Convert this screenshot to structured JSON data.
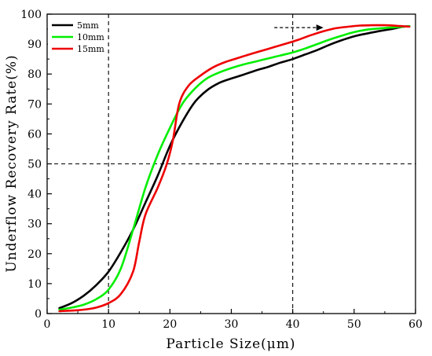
{
  "chart_data": {
    "type": "line",
    "xlabel": "Particle Size(μm)",
    "ylabel": "Underflow Recovery Rate(%)",
    "xlim": [
      0,
      60
    ],
    "ylim": [
      0,
      100
    ],
    "xticks": [
      "0",
      "10",
      "20",
      "30",
      "40",
      "50",
      "60"
    ],
    "yticks": [
      "0",
      "10",
      "20",
      "30",
      "40",
      "50",
      "60",
      "70",
      "80",
      "90",
      "100"
    ],
    "grid": false,
    "legend_position": "top-left",
    "reference_lines": {
      "vertical_x": [
        10,
        40
      ],
      "horizontal_y": [
        50
      ]
    },
    "annotation": {
      "type": "arrow",
      "direction": "right",
      "from": [
        37,
        95.5
      ],
      "to": [
        45,
        95.5
      ]
    },
    "series": [
      {
        "name": "5mm",
        "color": "#000000",
        "points": [
          [
            2,
            1.8
          ],
          [
            4,
            3.5
          ],
          [
            6,
            6
          ],
          [
            8,
            9.5
          ],
          [
            10,
            14
          ],
          [
            12,
            20.5
          ],
          [
            14,
            28
          ],
          [
            16,
            37
          ],
          [
            18,
            46
          ],
          [
            20,
            56
          ],
          [
            22,
            64
          ],
          [
            24,
            70.5
          ],
          [
            26,
            74.5
          ],
          [
            28,
            77
          ],
          [
            30,
            78.5
          ],
          [
            32,
            79.8
          ],
          [
            34,
            81.2
          ],
          [
            36,
            82.4
          ],
          [
            38,
            83.8
          ],
          [
            40,
            85
          ],
          [
            42,
            86.5
          ],
          [
            44,
            88
          ],
          [
            46,
            89.8
          ],
          [
            48,
            91.3
          ],
          [
            50,
            92.6
          ],
          [
            52,
            93.5
          ],
          [
            54,
            94.3
          ],
          [
            56,
            95
          ],
          [
            58,
            95.8
          ],
          [
            59,
            96
          ]
        ]
      },
      {
        "name": "10mm",
        "color": "#00ee00",
        "points": [
          [
            2,
            1.3
          ],
          [
            4,
            2
          ],
          [
            6,
            3
          ],
          [
            8,
            4.8
          ],
          [
            10,
            8
          ],
          [
            12,
            15
          ],
          [
            14,
            28
          ],
          [
            16,
            42
          ],
          [
            18,
            53
          ],
          [
            20,
            62
          ],
          [
            22,
            70
          ],
          [
            24,
            75
          ],
          [
            26,
            78.5
          ],
          [
            28,
            80.5
          ],
          [
            30,
            82
          ],
          [
            32,
            83.2
          ],
          [
            34,
            84.2
          ],
          [
            36,
            85.2
          ],
          [
            38,
            86.2
          ],
          [
            40,
            87.2
          ],
          [
            42,
            88.5
          ],
          [
            44,
            90
          ],
          [
            46,
            91.5
          ],
          [
            48,
            92.8
          ],
          [
            50,
            94
          ],
          [
            52,
            94.8
          ],
          [
            54,
            95.2
          ],
          [
            56,
            95.5
          ],
          [
            58,
            95.8
          ],
          [
            59,
            96
          ]
        ]
      },
      {
        "name": "15mm",
        "color": "#ee0000",
        "points": [
          [
            2,
            0.8
          ],
          [
            4,
            1
          ],
          [
            6,
            1.3
          ],
          [
            8,
            2
          ],
          [
            10,
            3.5
          ],
          [
            12,
            6.5
          ],
          [
            14,
            14
          ],
          [
            15,
            24
          ],
          [
            16,
            33
          ],
          [
            18,
            42
          ],
          [
            19.5,
            50
          ],
          [
            20.5,
            58
          ],
          [
            21.5,
            70
          ],
          [
            23,
            76
          ],
          [
            25,
            79.5
          ],
          [
            27,
            82.2
          ],
          [
            29,
            84
          ],
          [
            31,
            85.3
          ],
          [
            33,
            86.6
          ],
          [
            35,
            87.8
          ],
          [
            37,
            89
          ],
          [
            39,
            90.2
          ],
          [
            41,
            91.5
          ],
          [
            43,
            93
          ],
          [
            45,
            94.3
          ],
          [
            47,
            95.3
          ],
          [
            49,
            95.8
          ],
          [
            51,
            96.2
          ],
          [
            53,
            96.3
          ],
          [
            55,
            96.3
          ],
          [
            57,
            96.1
          ],
          [
            59,
            95.8
          ]
        ]
      }
    ]
  }
}
